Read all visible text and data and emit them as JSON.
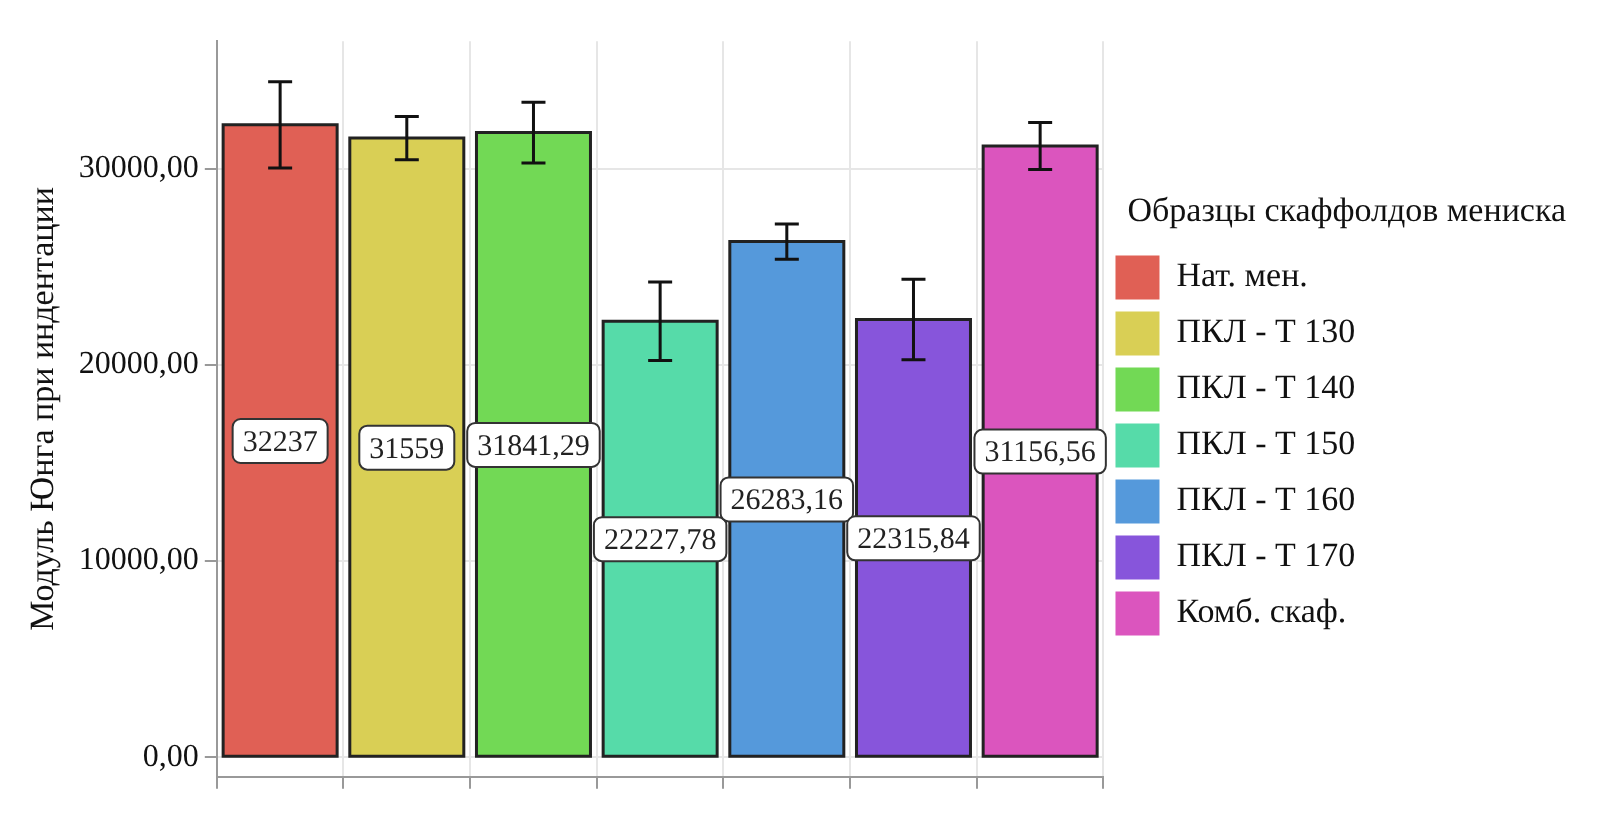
{
  "chart_data": {
    "type": "bar",
    "ylabel": "Модуль Юнга при индентации",
    "legend_title": "Образцы скаффолдов мениска",
    "categories": [
      null,
      null,
      null,
      null,
      null,
      null,
      null
    ],
    "series": [
      {
        "name": "Нат. мен.",
        "color": "#e06055",
        "values": [
          32237,
          null,
          null,
          null,
          null,
          null,
          null
        ],
        "errors": [
          2200,
          null,
          null,
          null,
          null,
          null,
          null
        ],
        "value_labels": [
          "32237",
          null,
          null,
          null,
          null,
          null,
          null
        ]
      },
      {
        "name": "ПКЛ - Т 130",
        "color": "#d9cf55",
        "values": [
          null,
          31559,
          null,
          null,
          null,
          null,
          null
        ],
        "errors": [
          null,
          1100,
          null,
          null,
          null,
          null,
          null
        ],
        "value_labels": [
          null,
          "31559",
          null,
          null,
          null,
          null,
          null
        ]
      },
      {
        "name": "ПКЛ - Т 140",
        "color": "#72d955",
        "values": [
          null,
          null,
          31841.29,
          null,
          null,
          null,
          null
        ],
        "errors": [
          null,
          null,
          1550,
          null,
          null,
          null,
          null
        ],
        "value_labels": [
          null,
          null,
          "31841,29",
          null,
          null,
          null,
          null
        ]
      },
      {
        "name": "ПКЛ - Т 150",
        "color": "#56dba9",
        "values": [
          null,
          null,
          null,
          22227.78,
          null,
          null,
          null
        ],
        "errors": [
          null,
          null,
          null,
          2000,
          null,
          null,
          null
        ],
        "value_labels": [
          null,
          null,
          null,
          "22227,78",
          null,
          null,
          null
        ]
      },
      {
        "name": "ПКЛ - Т 160",
        "color": "#5599db",
        "values": [
          null,
          null,
          null,
          null,
          26283.16,
          null,
          null
        ],
        "errors": [
          null,
          null,
          null,
          null,
          900,
          null,
          null
        ],
        "value_labels": [
          null,
          null,
          null,
          null,
          "26283,16",
          null,
          null
        ]
      },
      {
        "name": "ПКЛ - Т 170",
        "color": "#8755db",
        "values": [
          null,
          null,
          null,
          null,
          null,
          22315.84,
          null
        ],
        "errors": [
          null,
          null,
          null,
          null,
          null,
          2050,
          null
        ],
        "value_labels": [
          null,
          null,
          null,
          null,
          null,
          "22315,84",
          null
        ]
      },
      {
        "name": "Комб. скаф.",
        "color": "#db55be",
        "values": [
          null,
          null,
          null,
          null,
          null,
          null,
          31156.56
        ],
        "errors": [
          null,
          null,
          null,
          null,
          null,
          null,
          1200
        ],
        "value_labels": [
          null,
          null,
          null,
          null,
          null,
          null,
          "31156,56"
        ]
      }
    ],
    "ylim": [
      -1000,
      36500
    ],
    "yticks": [
      {
        "value": 0,
        "label": "0,00"
      },
      {
        "value": 10000,
        "label": "10000,00"
      },
      {
        "value": 20000,
        "label": "20000,00"
      },
      {
        "value": 30000,
        "label": "30000,00"
      }
    ],
    "grid": true,
    "legend": "right",
    "tick_labels": "y"
  }
}
